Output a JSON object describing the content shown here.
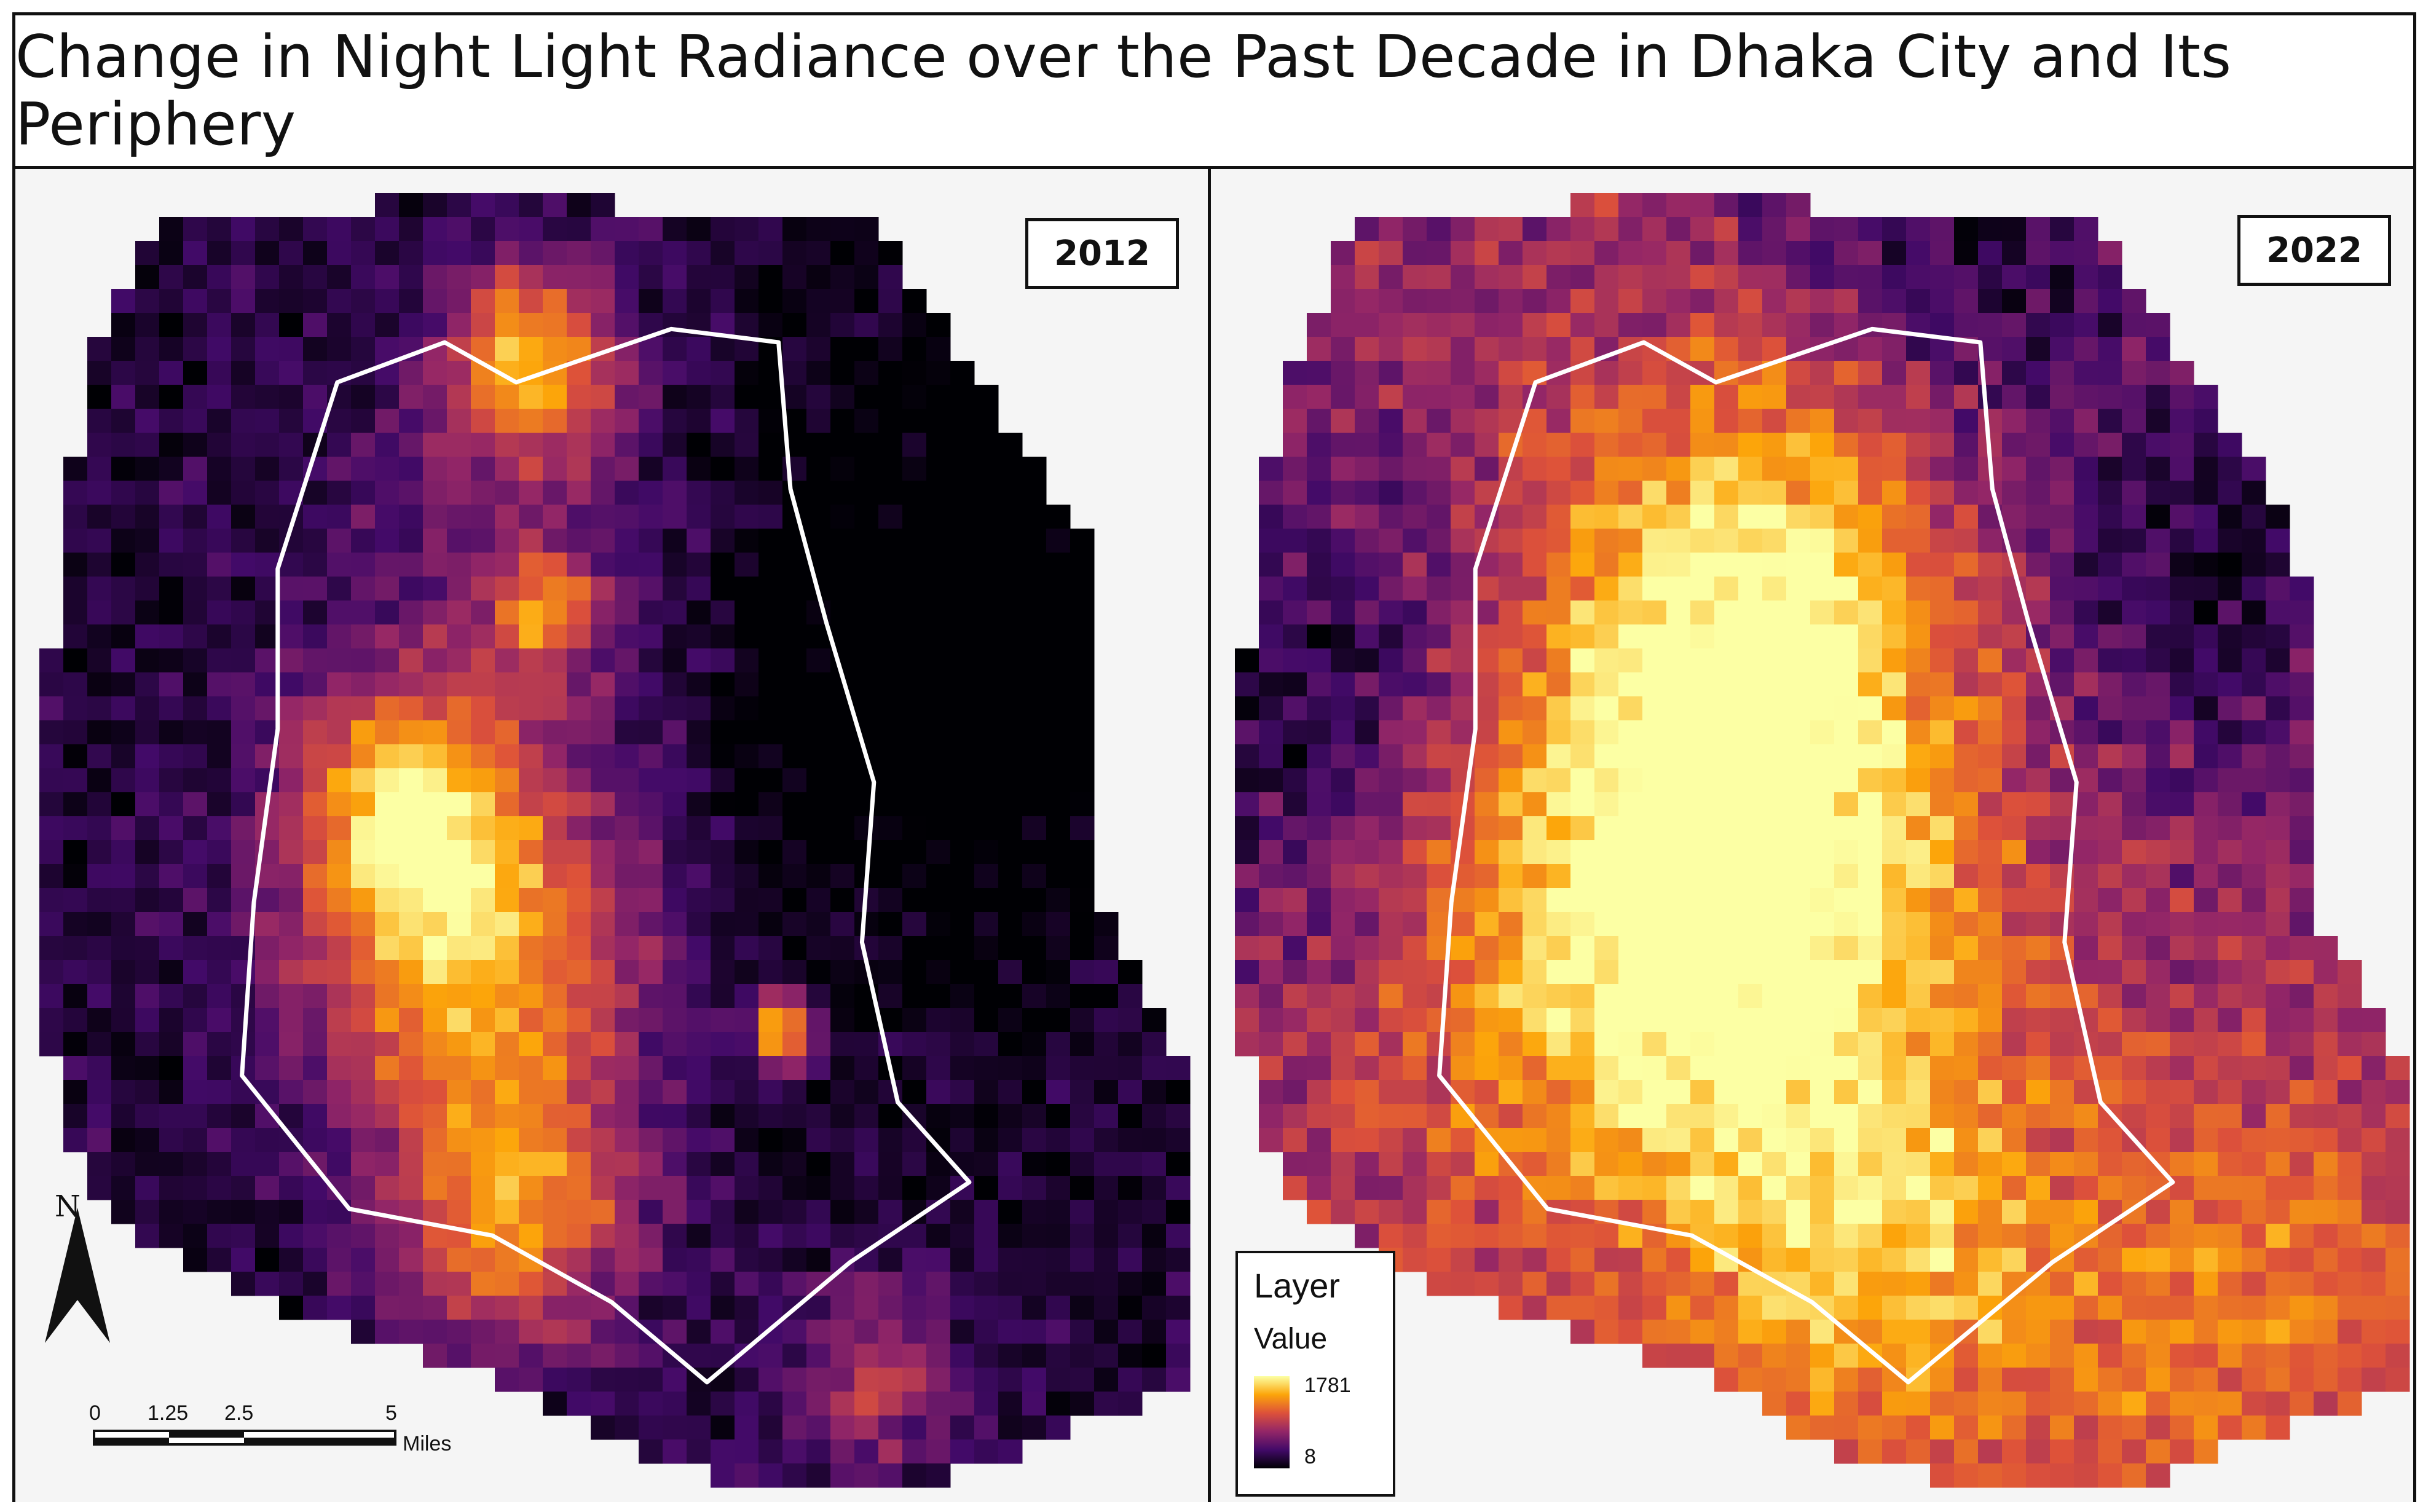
{
  "title": "Change in Night Light Radiance over the Past Decade in Dhaka City and Its Periphery",
  "panels": [
    {
      "year": "2012"
    },
    {
      "year": "2022"
    }
  ],
  "north_arrow": {
    "label": "N"
  },
  "scale_bar": {
    "ticks": [
      "0",
      "1.25",
      "2.5",
      "5"
    ],
    "unit": "Miles"
  },
  "legend": {
    "title": "Layer",
    "subtitle": "Value",
    "max": "1781",
    "min": "8"
  },
  "colors": {
    "ramp": [
      "#000004",
      "#420a68",
      "#932667",
      "#dd513a",
      "#fca50a",
      "#fcffa4"
    ],
    "boundary": "#ffffff",
    "background": "#f5f5f5"
  }
}
